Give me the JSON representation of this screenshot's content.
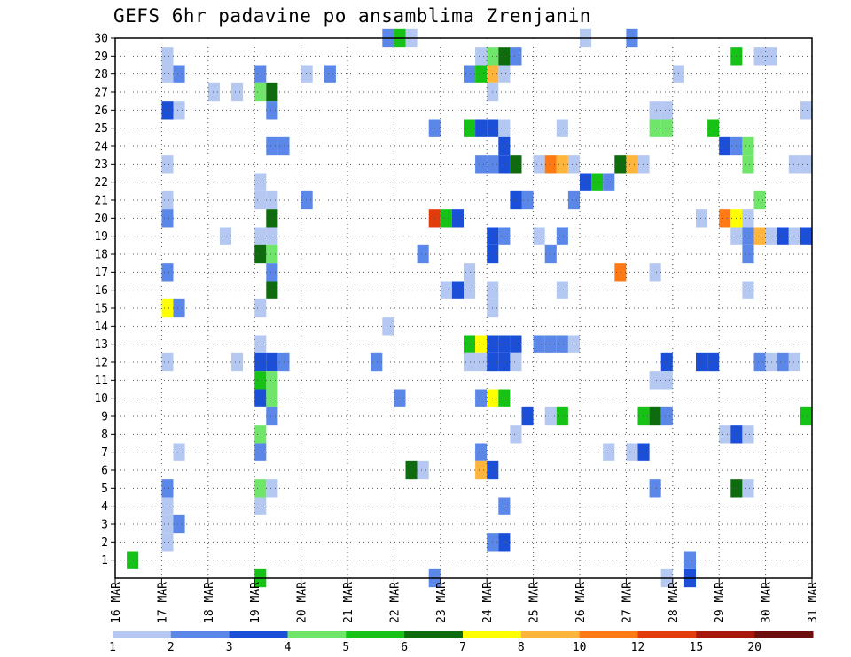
{
  "chart_data": {
    "type": "heatmap",
    "title": "GEFS 6hr padavine po ansamblima Zrenjanin",
    "x_tick_labels": [
      "16 MAR",
      "17 MAR",
      "18 MAR",
      "19 MAR",
      "20 MAR",
      "21 MAR",
      "22 MAR",
      "23 MAR",
      "24 MAR",
      "25 MAR",
      "26 MAR",
      "27 MAR",
      "28 MAR",
      "29 MAR",
      "30 MAR",
      "31 MAR"
    ],
    "y_tick_labels": [
      "1",
      "2",
      "3",
      "4",
      "5",
      "6",
      "7",
      "8",
      "9",
      "10",
      "11",
      "12",
      "13",
      "14",
      "15",
      "16",
      "17",
      "18",
      "19",
      "20",
      "21",
      "22",
      "23",
      "24",
      "25",
      "26",
      "27",
      "28",
      "29",
      "30"
    ],
    "x_range": [
      "16 MAR 00Z",
      "31 MAR 00Z"
    ],
    "time_step_hours": 6,
    "y_range": [
      0,
      30
    ],
    "grid": true,
    "grid_style": "dotted",
    "colorbar_labels": [
      "1",
      "2",
      "3",
      "4",
      "5",
      "6",
      "7",
      "8",
      "10",
      "12",
      "15",
      "20"
    ],
    "colorbar_colors": [
      "#b4c8f2",
      "#5a87e8",
      "#1c4fd8",
      "#6fe66a",
      "#16c216",
      "#0e6b0e",
      "#ffff00",
      "#ffb43c",
      "#ff7a14",
      "#e23c0c",
      "#a8170b",
      "#6e0f0f"
    ],
    "cells": [
      {
        "day": 0.25,
        "member": 0,
        "level": 4
      },
      {
        "day": 1.0,
        "member": 28,
        "level": 0
      },
      {
        "day": 1.0,
        "member": 27,
        "level": 0
      },
      {
        "day": 1.0,
        "member": 25,
        "level": 2
      },
      {
        "day": 1.0,
        "member": 22,
        "level": 0
      },
      {
        "day": 1.0,
        "member": 20,
        "level": 0
      },
      {
        "day": 1.0,
        "member": 19,
        "level": 1
      },
      {
        "day": 1.0,
        "member": 16,
        "level": 1
      },
      {
        "day": 1.0,
        "member": 14,
        "level": 6
      },
      {
        "day": 1.0,
        "member": 11,
        "level": 0
      },
      {
        "day": 1.0,
        "member": 4,
        "level": 1
      },
      {
        "day": 1.0,
        "member": 3,
        "level": 0
      },
      {
        "day": 1.0,
        "member": 2,
        "level": 0
      },
      {
        "day": 1.0,
        "member": 1,
        "level": 0
      },
      {
        "day": 1.25,
        "member": 27,
        "level": 1
      },
      {
        "day": 1.25,
        "member": 25,
        "level": 0
      },
      {
        "day": 1.25,
        "member": 14,
        "level": 1
      },
      {
        "day": 1.25,
        "member": 6,
        "level": 0
      },
      {
        "day": 1.25,
        "member": 2,
        "level": 1
      },
      {
        "day": 2.0,
        "member": 26,
        "level": 0
      },
      {
        "day": 2.25,
        "member": 18,
        "level": 0
      },
      {
        "day": 2.5,
        "member": 26,
        "level": 0
      },
      {
        "day": 2.5,
        "member": 11,
        "level": 0
      },
      {
        "day": 3.0,
        "member": 27,
        "level": 1
      },
      {
        "day": 3.0,
        "member": 26,
        "level": 3
      },
      {
        "day": 3.0,
        "member": 21,
        "level": 0
      },
      {
        "day": 3.0,
        "member": 20,
        "level": 0
      },
      {
        "day": 3.0,
        "member": 18,
        "level": 0
      },
      {
        "day": 3.0,
        "member": 17,
        "level": 5
      },
      {
        "day": 3.0,
        "member": 14,
        "level": 0
      },
      {
        "day": 3.0,
        "member": 12,
        "level": 0
      },
      {
        "day": 3.0,
        "member": 11,
        "level": 2
      },
      {
        "day": 3.0,
        "member": 10,
        "level": 4
      },
      {
        "day": 3.0,
        "member": 9,
        "level": 2
      },
      {
        "day": 3.0,
        "member": 7,
        "level": 3
      },
      {
        "day": 3.0,
        "member": 6,
        "level": 1
      },
      {
        "day": 3.0,
        "member": 4,
        "level": 3
      },
      {
        "day": 3.0,
        "member": 3,
        "level": 0
      },
      {
        "day": 3.0,
        "member": -1,
        "level": 4
      },
      {
        "day": 3.25,
        "member": 26,
        "level": 5
      },
      {
        "day": 3.25,
        "member": 25,
        "level": 1
      },
      {
        "day": 3.25,
        "member": 23,
        "level": 1
      },
      {
        "day": 3.25,
        "member": 20,
        "level": 0
      },
      {
        "day": 3.25,
        "member": 19,
        "level": 5
      },
      {
        "day": 3.25,
        "member": 18,
        "level": 0
      },
      {
        "day": 3.25,
        "member": 17,
        "level": 3
      },
      {
        "day": 3.25,
        "member": 16,
        "level": 1
      },
      {
        "day": 3.25,
        "member": 15,
        "level": 5
      },
      {
        "day": 3.25,
        "member": 11,
        "level": 2
      },
      {
        "day": 3.25,
        "member": 10,
        "level": 3
      },
      {
        "day": 3.25,
        "member": 9,
        "level": 3
      },
      {
        "day": 3.25,
        "member": 8,
        "level": 1
      },
      {
        "day": 3.25,
        "member": 4,
        "level": 0
      },
      {
        "day": 3.5,
        "member": 23,
        "level": 1
      },
      {
        "day": 3.5,
        "member": 11,
        "level": 1
      },
      {
        "day": 4.0,
        "member": 27,
        "level": 0
      },
      {
        "day": 4.0,
        "member": 20,
        "level": 1
      },
      {
        "day": 4.5,
        "member": 27,
        "level": 1
      },
      {
        "day": 5.5,
        "member": 11,
        "level": 1
      },
      {
        "day": 5.75,
        "member": 29,
        "level": 1
      },
      {
        "day": 5.75,
        "member": 13,
        "level": 0
      },
      {
        "day": 6.0,
        "member": 29,
        "level": 4
      },
      {
        "day": 6.0,
        "member": 9,
        "level": 1
      },
      {
        "day": 6.25,
        "member": 29,
        "level": 0
      },
      {
        "day": 6.25,
        "member": 5,
        "level": 5
      },
      {
        "day": 6.5,
        "member": 5,
        "level": 0
      },
      {
        "day": 6.5,
        "member": 17,
        "level": 1
      },
      {
        "day": 6.75,
        "member": 19,
        "level": 9
      },
      {
        "day": 6.75,
        "member": 24,
        "level": 1
      },
      {
        "day": 6.75,
        "member": -1,
        "level": 1
      },
      {
        "day": 7.0,
        "member": 19,
        "level": 4
      },
      {
        "day": 7.0,
        "member": 15,
        "level": 0
      },
      {
        "day": 7.25,
        "member": 19,
        "level": 2
      },
      {
        "day": 7.25,
        "member": 15,
        "level": 2
      },
      {
        "day": 7.5,
        "member": 27,
        "level": 1
      },
      {
        "day": 7.5,
        "member": 24,
        "level": 4
      },
      {
        "day": 7.5,
        "member": 16,
        "level": 0
      },
      {
        "day": 7.5,
        "member": 15,
        "level": 0
      },
      {
        "day": 7.5,
        "member": 12,
        "level": 4
      },
      {
        "day": 7.5,
        "member": 11,
        "level": 0
      },
      {
        "day": 7.75,
        "member": 28,
        "level": 0
      },
      {
        "day": 7.75,
        "member": 27,
        "level": 4
      },
      {
        "day": 7.75,
        "member": 24,
        "level": 2
      },
      {
        "day": 7.75,
        "member": 22,
        "level": 1
      },
      {
        "day": 7.75,
        "member": 12,
        "level": 6
      },
      {
        "day": 7.75,
        "member": 11,
        "level": 0
      },
      {
        "day": 7.75,
        "member": 9,
        "level": 1
      },
      {
        "day": 7.75,
        "member": 6,
        "level": 1
      },
      {
        "day": 7.75,
        "member": 5,
        "level": 7
      },
      {
        "day": 8.0,
        "member": 28,
        "level": 3
      },
      {
        "day": 8.0,
        "member": 27,
        "level": 7
      },
      {
        "day": 8.0,
        "member": 26,
        "level": 0
      },
      {
        "day": 8.0,
        "member": 24,
        "level": 2
      },
      {
        "day": 8.0,
        "member": 22,
        "level": 1
      },
      {
        "day": 8.0,
        "member": 18,
        "level": 2
      },
      {
        "day": 8.0,
        "member": 17,
        "level": 2
      },
      {
        "day": 8.0,
        "member": 15,
        "level": 0
      },
      {
        "day": 8.0,
        "member": 14,
        "level": 0
      },
      {
        "day": 8.0,
        "member": 12,
        "level": 2
      },
      {
        "day": 8.0,
        "member": 11,
        "level": 2
      },
      {
        "day": 8.0,
        "member": 9,
        "level": 6
      },
      {
        "day": 8.0,
        "member": 5,
        "level": 2
      },
      {
        "day": 8.0,
        "member": 1,
        "level": 1
      },
      {
        "day": 8.25,
        "member": 28,
        "level": 5
      },
      {
        "day": 8.25,
        "member": 27,
        "level": 0
      },
      {
        "day": 8.25,
        "member": 24,
        "level": 0
      },
      {
        "day": 8.25,
        "member": 23,
        "level": 2
      },
      {
        "day": 8.25,
        "member": 22,
        "level": 2
      },
      {
        "day": 8.25,
        "member": 18,
        "level": 1
      },
      {
        "day": 8.25,
        "member": 12,
        "level": 2
      },
      {
        "day": 8.25,
        "member": 11,
        "level": 2
      },
      {
        "day": 8.25,
        "member": 9,
        "level": 4
      },
      {
        "day": 8.25,
        "member": 3,
        "level": 1
      },
      {
        "day": 8.25,
        "member": 1,
        "level": 2
      },
      {
        "day": 8.5,
        "member": 28,
        "level": 1
      },
      {
        "day": 8.5,
        "member": 22,
        "level": 5
      },
      {
        "day": 8.5,
        "member": 12,
        "level": 2
      },
      {
        "day": 8.5,
        "member": 11,
        "level": 0
      },
      {
        "day": 8.5,
        "member": 7,
        "level": 0
      },
      {
        "day": 8.5,
        "member": 20,
        "level": 2
      },
      {
        "day": 8.75,
        "member": 20,
        "level": 1
      },
      {
        "day": 8.75,
        "member": 8,
        "level": 2
      },
      {
        "day": 9.0,
        "member": 22,
        "level": 0
      },
      {
        "day": 9.0,
        "member": 12,
        "level": 1
      },
      {
        "day": 9.0,
        "member": 18,
        "level": 0
      },
      {
        "day": 9.25,
        "member": 22,
        "level": 8
      },
      {
        "day": 9.25,
        "member": 17,
        "level": 1
      },
      {
        "day": 9.25,
        "member": 12,
        "level": 1
      },
      {
        "day": 9.25,
        "member": 8,
        "level": 0
      },
      {
        "day": 9.5,
        "member": 22,
        "level": 7
      },
      {
        "day": 9.5,
        "member": 24,
        "level": 0
      },
      {
        "day": 9.5,
        "member": 18,
        "level": 1
      },
      {
        "day": 9.5,
        "member": 15,
        "level": 0
      },
      {
        "day": 9.5,
        "member": 12,
        "level": 1
      },
      {
        "day": 9.5,
        "member": 8,
        "level": 4
      },
      {
        "day": 9.75,
        "member": 22,
        "level": 0
      },
      {
        "day": 9.75,
        "member": 20,
        "level": 1
      },
      {
        "day": 9.75,
        "member": 12,
        "level": 0
      },
      {
        "day": 10.0,
        "member": 21,
        "level": 2
      },
      {
        "day": 10.0,
        "member": 29,
        "level": 0
      },
      {
        "day": 10.25,
        "member": 21,
        "level": 4
      },
      {
        "day": 10.5,
        "member": 21,
        "level": 1
      },
      {
        "day": 10.5,
        "member": 6,
        "level": 0
      },
      {
        "day": 10.75,
        "member": 22,
        "level": 5
      },
      {
        "day": 10.75,
        "member": 16,
        "level": 8
      },
      {
        "day": 11.0,
        "member": 22,
        "level": 7
      },
      {
        "day": 11.0,
        "member": 29,
        "level": 1
      },
      {
        "day": 11.0,
        "member": 6,
        "level": 0
      },
      {
        "day": 11.25,
        "member": 22,
        "level": 0
      },
      {
        "day": 11.25,
        "member": 8,
        "level": 4
      },
      {
        "day": 11.25,
        "member": 6,
        "level": 2
      },
      {
        "day": 11.5,
        "member": 24,
        "level": 3
      },
      {
        "day": 11.5,
        "member": 16,
        "level": 0
      },
      {
        "day": 11.5,
        "member": 25,
        "level": 0
      },
      {
        "day": 11.5,
        "member": 8,
        "level": 5
      },
      {
        "day": 11.5,
        "member": 10,
        "level": 0
      },
      {
        "day": 11.5,
        "member": 4,
        "level": 1
      },
      {
        "day": 11.75,
        "member": 24,
        "level": 3
      },
      {
        "day": 11.75,
        "member": 25,
        "level": 0
      },
      {
        "day": 11.75,
        "member": 11,
        "level": 2
      },
      {
        "day": 11.75,
        "member": 8,
        "level": 1
      },
      {
        "day": 11.75,
        "member": 10,
        "level": 0
      },
      {
        "day": 11.75,
        "member": -1,
        "level": 0
      },
      {
        "day": 12.0,
        "member": 27,
        "level": 0
      },
      {
        "day": 12.25,
        "member": -1,
        "level": 2
      },
      {
        "day": 12.25,
        "member": 0,
        "level": 1
      },
      {
        "day": 12.5,
        "member": 19,
        "level": 0
      },
      {
        "day": 12.5,
        "member": 11,
        "level": 2
      },
      {
        "day": 12.75,
        "member": 11,
        "level": 2
      },
      {
        "day": 12.75,
        "member": 24,
        "level": 4
      },
      {
        "day": 13.0,
        "member": 23,
        "level": 2
      },
      {
        "day": 13.0,
        "member": 19,
        "level": 8
      },
      {
        "day": 13.0,
        "member": 7,
        "level": 0
      },
      {
        "day": 13.25,
        "member": 28,
        "level": 4
      },
      {
        "day": 13.25,
        "member": 23,
        "level": 1
      },
      {
        "day": 13.25,
        "member": 19,
        "level": 6
      },
      {
        "day": 13.25,
        "member": 18,
        "level": 0
      },
      {
        "day": 13.25,
        "member": 7,
        "level": 2
      },
      {
        "day": 13.25,
        "member": 4,
        "level": 5
      },
      {
        "day": 13.5,
        "member": 23,
        "level": 3
      },
      {
        "day": 13.5,
        "member": 22,
        "level": 3
      },
      {
        "day": 13.5,
        "member": 19,
        "level": 0
      },
      {
        "day": 13.5,
        "member": 18,
        "level": 1
      },
      {
        "day": 13.5,
        "member": 17,
        "level": 1
      },
      {
        "day": 13.5,
        "member": 15,
        "level": 0
      },
      {
        "day": 13.5,
        "member": 7,
        "level": 0
      },
      {
        "day": 13.5,
        "member": 4,
        "level": 0
      },
      {
        "day": 13.75,
        "member": 28,
        "level": 0
      },
      {
        "day": 13.75,
        "member": 20,
        "level": 3
      },
      {
        "day": 13.75,
        "member": 18,
        "level": 7
      },
      {
        "day": 13.75,
        "member": 11,
        "level": 1
      },
      {
        "day": 14.0,
        "member": 18,
        "level": 0
      },
      {
        "day": 14.0,
        "member": 28,
        "level": 0
      },
      {
        "day": 14.0,
        "member": 11,
        "level": 0
      },
      {
        "day": 14.25,
        "member": 18,
        "level": 2
      },
      {
        "day": 14.25,
        "member": 11,
        "level": 1
      },
      {
        "day": 14.5,
        "member": 22,
        "level": 0
      },
      {
        "day": 14.5,
        "member": 18,
        "level": 0
      },
      {
        "day": 14.5,
        "member": 11,
        "level": 0
      },
      {
        "day": 14.75,
        "member": 22,
        "level": 0
      },
      {
        "day": 14.75,
        "member": 18,
        "level": 2
      },
      {
        "day": 14.75,
        "member": 25,
        "level": 0
      },
      {
        "day": 14.75,
        "member": 8,
        "level": 4
      }
    ]
  },
  "colors": {
    "background": "#ffffff",
    "frame": "#000000",
    "grid": "#555555"
  }
}
